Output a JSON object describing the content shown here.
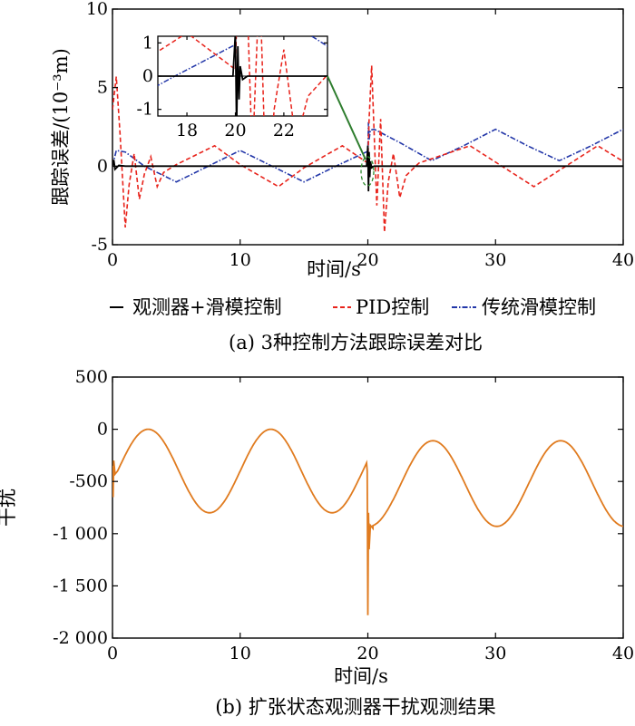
{
  "chart_data": [
    {
      "id": "a",
      "type": "line",
      "caption": "(a) 3种控制方法跟踪误差对比",
      "xlabel": "时间/s",
      "ylabel": "跟踪误差/(10⁻³m)",
      "xlim": [
        0,
        40
      ],
      "ylim": [
        -5,
        10
      ],
      "xticks": [
        "0",
        "10",
        "20",
        "30",
        "40"
      ],
      "yticks": [
        "-5",
        "0",
        "5",
        "10"
      ],
      "legend_position": "below",
      "series": [
        {
          "name": "观测器+滑模控制",
          "color": "#000000",
          "style": "solid",
          "x": [
            0,
            0.1,
            0.2,
            0.5,
            1,
            5,
            10,
            15,
            19.9,
            20.0,
            20.05,
            20.1,
            20.15,
            20.2,
            20.3,
            20.5,
            21,
            25,
            30,
            35,
            40
          ],
          "y": [
            0,
            0.4,
            -0.2,
            0.05,
            0,
            0,
            0,
            0,
            0,
            1.3,
            -1.6,
            0.9,
            -0.7,
            0.3,
            -0.1,
            0,
            0,
            0,
            0,
            0,
            0
          ]
        },
        {
          "name": "PID控制",
          "color": "#e8231b",
          "style": "dashed",
          "x": [
            0,
            0.3,
            0.6,
            1.0,
            1.3,
            1.7,
            2.1,
            2.5,
            3.0,
            3.5,
            4.0,
            5.0,
            8.0,
            10.0,
            13.0,
            15.0,
            18.0,
            20.0,
            20.1,
            20.3,
            20.5,
            20.7,
            21.0,
            21.3,
            21.6,
            22.0,
            22.5,
            23.0,
            24.0,
            28.0,
            33.0,
            38.0,
            40.0
          ],
          "y": [
            3.6,
            5.7,
            2.0,
            -3.9,
            -1.2,
            0.8,
            -2.1,
            -0.5,
            0.6,
            -1.3,
            -0.4,
            0.1,
            1.3,
            0.1,
            -1.3,
            -0.1,
            1.3,
            0.2,
            3.0,
            6.4,
            2.0,
            -2.5,
            3.0,
            -4.2,
            -1.0,
            0.8,
            -2.0,
            -0.6,
            0.2,
            1.3,
            -1.3,
            1.3,
            0.3
          ]
        },
        {
          "name": "传统滑模控制",
          "color": "#2236a8",
          "style": "dashdot",
          "x": [
            0,
            0.3,
            1,
            2.5,
            5,
            7.5,
            10,
            12.5,
            15,
            17.5,
            20.0,
            20.05,
            20.1,
            20.2,
            20.5,
            22.5,
            25,
            27.5,
            30,
            32.5,
            35,
            37.5,
            40
          ],
          "y": [
            0.0,
            1.0,
            0.9,
            0.0,
            -1.0,
            0.0,
            1.0,
            0.0,
            -1.0,
            0.0,
            0.95,
            2.8,
            1.7,
            2.3,
            2.35,
            1.5,
            0.35,
            1.3,
            2.35,
            1.3,
            0.35,
            1.3,
            2.35
          ]
        }
      ],
      "inset": {
        "xlim": [
          16.8,
          23.8
        ],
        "ylim": [
          -1.2,
          1.2
        ],
        "xticks": [
          "18",
          "20",
          "22"
        ],
        "yticks": [
          "-1",
          "0",
          "1"
        ]
      }
    },
    {
      "id": "b",
      "type": "line",
      "caption": "(b) 扩张状态观测器干扰观测结果",
      "xlabel": "时间/s",
      "ylabel": "干扰",
      "xlim": [
        0,
        40
      ],
      "ylim": [
        -2000,
        500
      ],
      "xticks": [
        "0",
        "10",
        "20",
        "30",
        "40"
      ],
      "yticks": [
        "500",
        "0",
        "-500",
        "-1 000",
        "-1 500",
        "-2 000"
      ],
      "series": [
        {
          "name": "",
          "color": "#e07b1f",
          "style": "solid",
          "x": [
            0,
            0.05,
            0.1,
            0.2,
            0.4,
            19.95,
            20.0,
            20.05,
            20.1,
            20.2,
            20.4,
            40
          ],
          "y": [
            -350,
            -650,
            -300,
            -430,
            -400,
            -400,
            -1780,
            -800,
            -1150,
            -920,
            -950,
            -930
          ]
        }
      ]
    }
  ]
}
